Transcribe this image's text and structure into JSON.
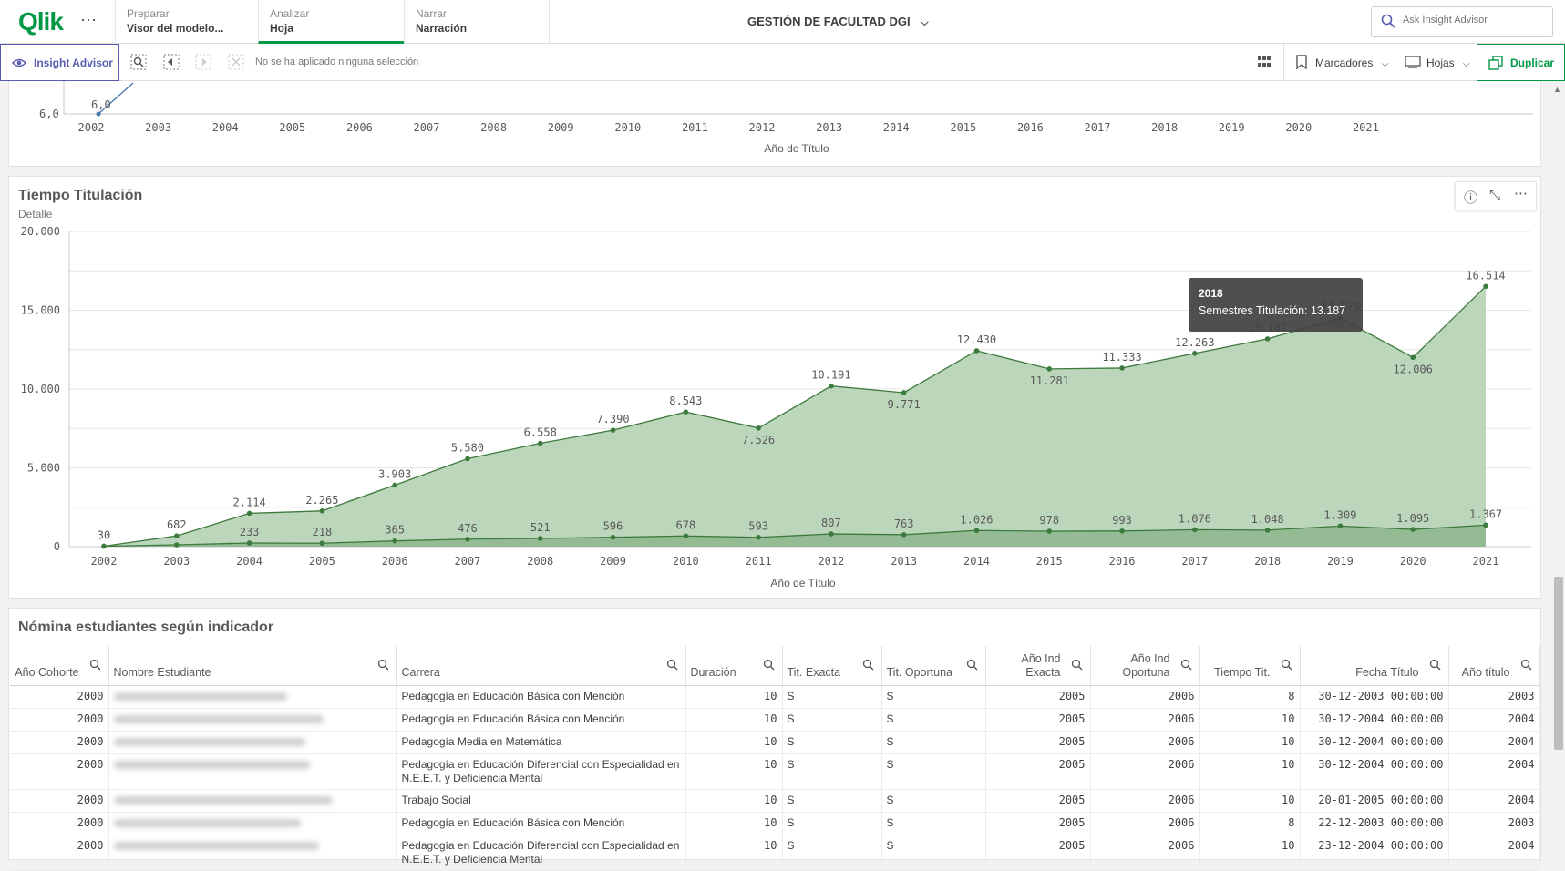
{
  "nav": {
    "logo": "Qlik",
    "tabs": [
      {
        "small": "Preparar",
        "big": "Visor del modelo..."
      },
      {
        "small": "Analizar",
        "big": "Hoja"
      },
      {
        "small": "Narrar",
        "big": "Narración"
      }
    ],
    "app_title": "GESTIÓN DE FACULTAD DGI",
    "search_placeholder": "Ask Insight Advisor"
  },
  "toolbar": {
    "insight_label": "Insight Advisor",
    "selection_text": "No se ha aplicado ninguna selección",
    "bookmarks_label": "Marcadores",
    "sheets_label": "Hojas",
    "duplicate_label": "Duplicar"
  },
  "top_chart": {
    "xlabel": "Año de Título",
    "ytick": "6,0",
    "point_label": "6,0",
    "years": [
      "2002",
      "2003",
      "2004",
      "2005",
      "2006",
      "2007",
      "2008",
      "2009",
      "2010",
      "2011",
      "2012",
      "2013",
      "2014",
      "2015",
      "2016",
      "2017",
      "2018",
      "2019",
      "2020",
      "2021"
    ]
  },
  "main_chart": {
    "title": "Tiempo Titulación",
    "subtitle": "Detalle",
    "xlabel": "Año de Título",
    "tooltip": {
      "title": "2018",
      "line": "Semestres Titulación: 13.187"
    }
  },
  "chart_data": {
    "type": "area",
    "title": "Tiempo Titulación",
    "subtitle": "Detalle",
    "xlabel": "Año de Título",
    "ylabel": "",
    "ylim": [
      0,
      20000
    ],
    "yticks": [
      0,
      5000,
      10000,
      15000,
      20000
    ],
    "ytick_labels": [
      "0",
      "5.000",
      "10.000",
      "15.000",
      "20.000"
    ],
    "categories": [
      "2002",
      "2003",
      "2004",
      "2005",
      "2006",
      "2007",
      "2008",
      "2009",
      "2010",
      "2011",
      "2012",
      "2013",
      "2014",
      "2015",
      "2016",
      "2017",
      "2018",
      "2019",
      "2020",
      "2021"
    ],
    "series": [
      {
        "name": "Semestres Titulación",
        "values": [
          30,
          682,
          2114,
          2265,
          3903,
          5580,
          6558,
          7390,
          8543,
          7526,
          10191,
          9771,
          12430,
          11281,
          11333,
          12263,
          13187,
          14500,
          12006,
          16514
        ],
        "labels": [
          "30",
          "682",
          "2.114",
          "2.265",
          "3.903",
          "5.580",
          "6.558",
          "7.390",
          "8.543",
          "7.526",
          "10.191",
          "9.771",
          "12.430",
          "11.281",
          "11.333",
          "12.263",
          "13.187",
          "14.5?9",
          "12.006",
          "16.514"
        ],
        "color": "#3d7a3d",
        "fill": "#b8d4b8"
      },
      {
        "values": [
          30,
          115,
          233,
          218,
          365,
          476,
          521,
          596,
          678,
          593,
          807,
          763,
          1026,
          978,
          993,
          1076,
          1048,
          1309,
          1095,
          1367
        ],
        "labels": [
          "",
          "",
          "233",
          "218",
          "365",
          "476",
          "521",
          "596",
          "678",
          "593",
          "807",
          "763",
          "1.026",
          "978",
          "993",
          "1.076",
          "1.048",
          "1.309",
          "1.095",
          "1.367"
        ],
        "color": "#3d7a3d",
        "fill": "#8fb88f"
      }
    ],
    "grid": true
  },
  "table": {
    "title": "Nómina estudiantes según indicador",
    "columns": [
      "Año Cohorte",
      "Nombre Estudiante",
      "Carrera",
      "Duración",
      "Tit. Exacta",
      "Tit. Oportuna",
      "Año Ind Exacta",
      "Año Ind Oportuna",
      "Tiempo Tit.",
      "Fecha Título",
      "Año título"
    ],
    "rows": [
      [
        "2000",
        "",
        "Pedagogía en Educación Básica con Mención",
        "10",
        "S",
        "S",
        "2005",
        "2006",
        "8",
        "30-12-2003 00:00:00",
        "2003"
      ],
      [
        "2000",
        "",
        "Pedagogía en Educación Básica con Mención",
        "10",
        "S",
        "S",
        "2005",
        "2006",
        "10",
        "30-12-2004 00:00:00",
        "2004"
      ],
      [
        "2000",
        "",
        "Pedagogía Media en Matemática",
        "10",
        "S",
        "S",
        "2005",
        "2006",
        "10",
        "30-12-2004 00:00:00",
        "2004"
      ],
      [
        "2000",
        "",
        "Pedagogía en Educación Diferencial con Especialidad en N.E.E.T. y Deficiencia Mental",
        "10",
        "S",
        "S",
        "2005",
        "2006",
        "10",
        "30-12-2004 00:00:00",
        "2004"
      ],
      [
        "2000",
        "",
        "Trabajo Social",
        "10",
        "S",
        "S",
        "2005",
        "2006",
        "10",
        "20-01-2005 00:00:00",
        "2004"
      ],
      [
        "2000",
        "",
        "Pedagogía en Educación Básica con Mención",
        "10",
        "S",
        "S",
        "2005",
        "2006",
        "8",
        "22-12-2003 00:00:00",
        "2003"
      ],
      [
        "2000",
        "",
        "Pedagogía en Educación Diferencial con Especialidad en N.E.E.T. y Deficiencia Mental",
        "10",
        "S",
        "S",
        "2005",
        "2006",
        "10",
        "23-12-2004 00:00:00",
        "2004"
      ]
    ]
  },
  "colors": {
    "accent": "#009845",
    "insight": "#595bb0",
    "series_line": "#3d7a3d"
  }
}
